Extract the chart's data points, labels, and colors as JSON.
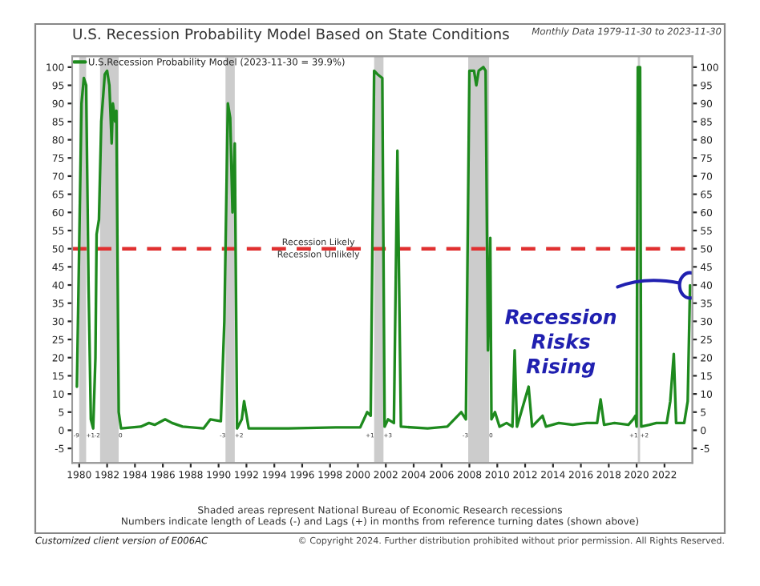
{
  "chart_data": {
    "type": "line",
    "title": "U.S. Recession Probability Model Based on State Conditions",
    "subtitle": "Monthly Data 1979-11-30 to 2023-11-30",
    "x": [
      "1979-11",
      "1980-03",
      "1980-05",
      "1980-07",
      "1980-09",
      "1980-11",
      "1981-01",
      "1981-03",
      "1981-04",
      "1981-06",
      "1981-08",
      "1981-11",
      "1982-01",
      "1982-03",
      "1982-05",
      "1982-06",
      "1982-08",
      "1982-09",
      "1982-11",
      "1983-01",
      "1984-06",
      "1985-01",
      "1985-06",
      "1986-03",
      "1986-09",
      "1987-06",
      "1988-12",
      "1989-06",
      "1990-03",
      "1990-06",
      "1990-09",
      "1990-11",
      "1991-01",
      "1991-03",
      "1991-05",
      "1991-09",
      "1991-11",
      "1992-03",
      "1995-01",
      "1998-06",
      "2000-03",
      "2000-09",
      "2000-12",
      "2001-03",
      "2001-06",
      "2001-10",
      "2001-12",
      "2002-03",
      "2002-08",
      "2002-11",
      "2003-02",
      "2005-01",
      "2006-06",
      "2007-06",
      "2007-10",
      "2008-01",
      "2008-05",
      "2008-07",
      "2008-09",
      "2009-01",
      "2009-03",
      "2009-05",
      "2009-07",
      "2009-08",
      "2009-11",
      "2010-03",
      "2010-09",
      "2011-02",
      "2011-04",
      "2011-06",
      "2012-04",
      "2012-07",
      "2013-04",
      "2013-07",
      "2014-06",
      "2015-06",
      "2016-06",
      "2017-03",
      "2017-06",
      "2017-09",
      "2018-06",
      "2019-06",
      "2019-10",
      "2019-12",
      "2020-01",
      "2020-02",
      "2020-04",
      "2020-05",
      "2020-12",
      "2021-06",
      "2022-03",
      "2022-06",
      "2022-09",
      "2022-11",
      "2023-06",
      "2023-09",
      "2023-11"
    ],
    "series": [
      {
        "name": "U.S.Recession Probability Model (2023-11-30 = 39.9%)",
        "color": "#1e8a1e",
        "values": [
          12,
          90,
          97,
          95,
          40,
          3,
          0.5,
          20,
          54,
          58,
          85,
          98,
          99,
          95,
          79,
          90,
          85,
          88,
          5,
          0.5,
          1,
          2,
          1.5,
          3,
          2,
          1,
          0.5,
          3,
          2.5,
          30,
          90,
          86,
          60,
          79,
          0.5,
          3,
          8,
          0.5,
          0.5,
          0.8,
          0.8,
          5,
          4,
          99,
          98,
          97,
          1,
          3,
          2,
          77,
          1,
          0.5,
          1,
          5,
          3,
          99,
          99,
          95,
          99,
          100,
          99,
          22,
          53,
          3,
          5,
          1,
          2,
          1,
          22,
          1,
          12,
          1,
          4,
          1,
          2,
          1.5,
          2,
          2,
          8.5,
          1.5,
          2,
          1.5,
          3,
          4,
          1,
          100,
          100,
          1,
          1.5,
          2,
          2,
          8,
          21,
          2,
          2,
          8,
          39.9
        ]
      }
    ],
    "xlim": [
      "1979-07",
      "2024-01"
    ],
    "xticks": [
      "1980",
      "1982",
      "1984",
      "1986",
      "1988",
      "1990",
      "1992",
      "1994",
      "1996",
      "1998",
      "2000",
      "2002",
      "2004",
      "2006",
      "2008",
      "2010",
      "2012",
      "2014",
      "2016",
      "2018",
      "2020",
      "2022"
    ],
    "ylim": [
      -9,
      103
    ],
    "yticks": [
      -5,
      0,
      5,
      10,
      15,
      20,
      25,
      30,
      35,
      40,
      45,
      50,
      55,
      60,
      65,
      70,
      75,
      80,
      85,
      90,
      95,
      100
    ],
    "y2lim": [
      -9,
      103
    ],
    "y2ticks": [
      -5,
      0,
      5,
      10,
      15,
      20,
      25,
      30,
      35,
      40,
      45,
      50,
      55,
      60,
      65,
      70,
      75,
      80,
      85,
      90,
      95,
      100
    ],
    "ref_lines": [
      {
        "axis": "y",
        "value": 50,
        "label": "Recession Likely",
        "color": "#e03030",
        "line_style": "dashed"
      }
    ],
    "bands": [
      {
        "axis": "x",
        "from": "1980-01",
        "to": "1980-07",
        "color": "#cccccc"
      },
      {
        "axis": "x",
        "from": "1981-07",
        "to": "1982-11",
        "color": "#cccccc"
      },
      {
        "axis": "x",
        "from": "1990-07",
        "to": "1991-03",
        "color": "#cccccc"
      },
      {
        "axis": "x",
        "from": "2001-03",
        "to": "2001-11",
        "color": "#cccccc"
      },
      {
        "axis": "x",
        "from": "2007-12",
        "to": "2009-06",
        "color": "#cccccc"
      },
      {
        "axis": "x",
        "from": "2020-02",
        "to": "2020-04",
        "color": "#cccccc"
      }
    ],
    "annotations": [
      {
        "text": "Recession Unlikely",
        "x": "1997-03",
        "y": 50
      },
      {
        "text": "Recession\nRisks\nRising",
        "x": "2023-11",
        "y": 39.9
      },
      {
        "text": "-9",
        "x": "1980-01",
        "y": -1.5
      },
      {
        "text": "+1",
        "x": "1980-07",
        "y": -1.5
      },
      {
        "text": "-2",
        "x": "1981-07",
        "y": -1.5
      },
      {
        "text": "0",
        "x": "1982-11",
        "y": -1.5
      },
      {
        "text": "-3",
        "x": "1990-07",
        "y": -1.5
      },
      {
        "text": "+2",
        "x": "1991-03",
        "y": -1.5
      },
      {
        "text": "+1",
        "x": "2001-03",
        "y": -1.5
      },
      {
        "text": "+3",
        "x": "2001-11",
        "y": -1.5
      },
      {
        "text": "-3",
        "x": "2007-12",
        "y": -1.5
      },
      {
        "text": "0",
        "x": "2009-06",
        "y": -1.5
      },
      {
        "text": "+1",
        "x": "2020-02",
        "y": -1.5
      },
      {
        "text": "+2",
        "x": "2020-04",
        "y": -1.5
      },
      "Shaded areas represent National Bureau of Economic Research recessions",
      "Numbers indicate length of Leads (-) and Lags (+) in months from reference turning dates (shown above)",
      "Customized client version of E006AC",
      "© Copyright 2024. Further distribution prohibited without prior permission. All Rights Reserved."
    ],
    "legend": "top left",
    "grid": false,
    "line_style": "solid",
    "marker": "none"
  }
}
